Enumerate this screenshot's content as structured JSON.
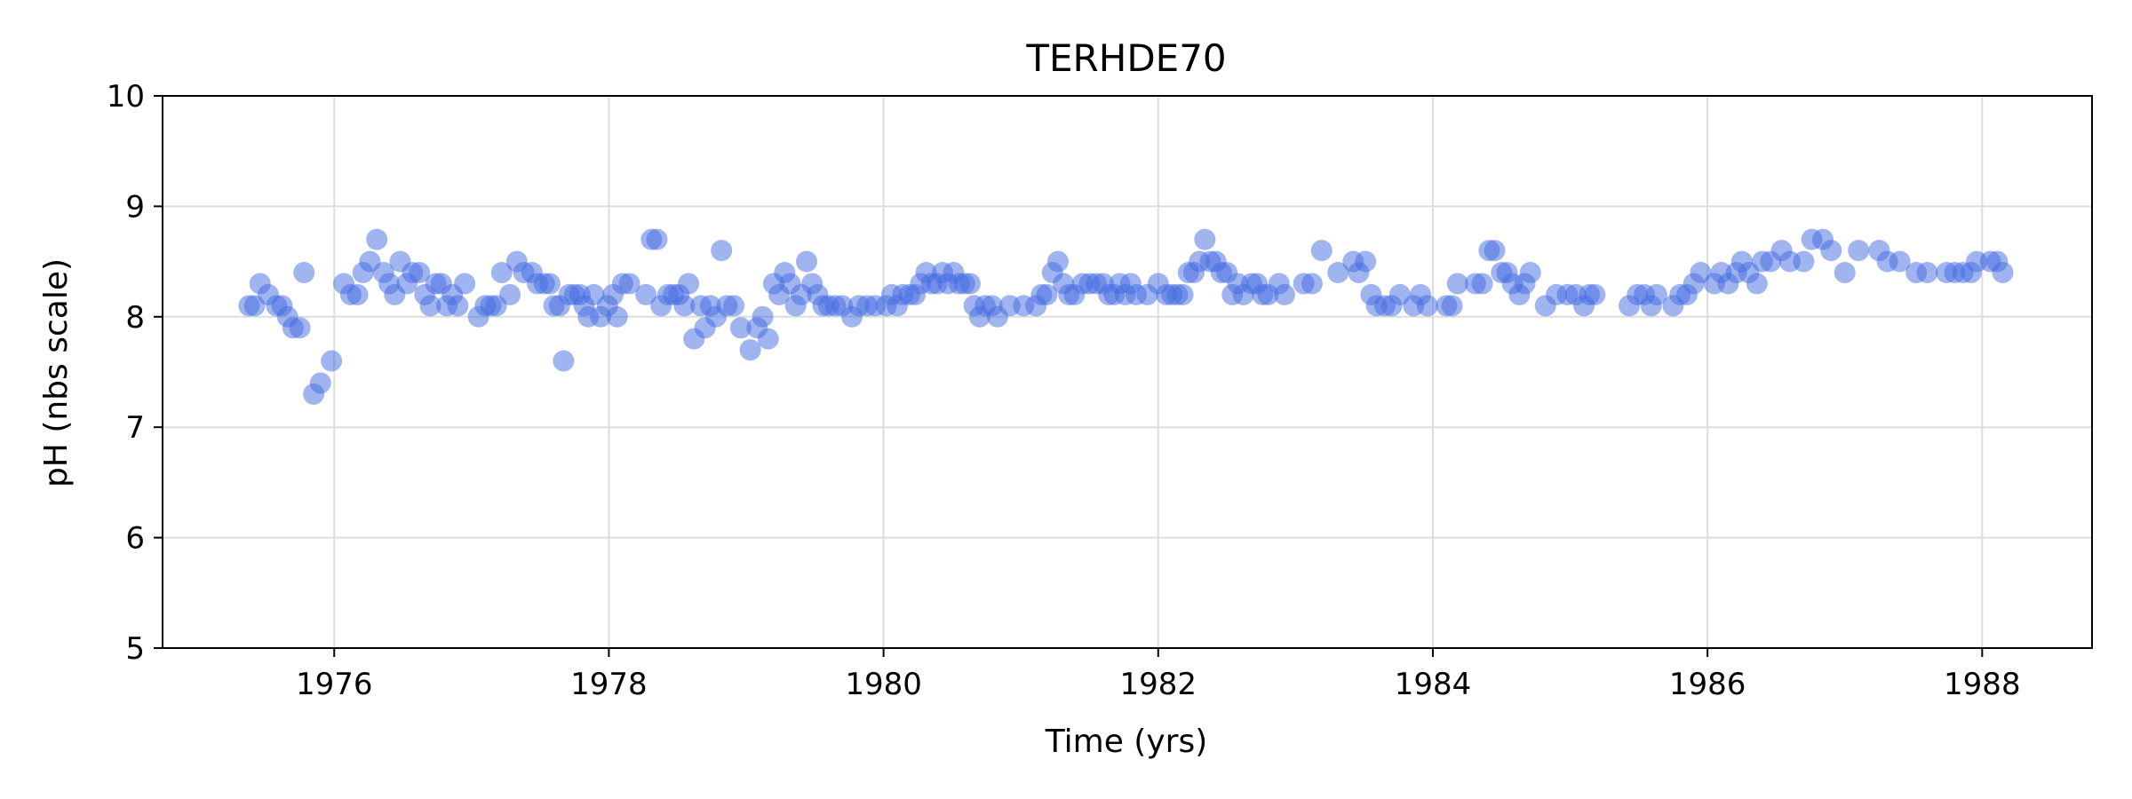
{
  "chart_data": {
    "type": "scatter",
    "title": "TERHDE70",
    "xlabel": "Time (yrs)",
    "ylabel": "pH (nbs scale)",
    "xlim": [
      1974.75,
      1988.8
    ],
    "ylim": [
      5,
      10
    ],
    "xticks": [
      1976,
      1978,
      1980,
      1982,
      1984,
      1986,
      1988
    ],
    "yticks": [
      5,
      6,
      7,
      8,
      9,
      10
    ],
    "grid": true,
    "marker_color": "#4169E1",
    "marker_alpha": 0.5,
    "points": [
      [
        1975.38,
        8.1
      ],
      [
        1975.42,
        8.1
      ],
      [
        1975.46,
        8.3
      ],
      [
        1975.52,
        8.2
      ],
      [
        1975.58,
        8.1
      ],
      [
        1975.62,
        8.1
      ],
      [
        1975.66,
        8.0
      ],
      [
        1975.7,
        7.9
      ],
      [
        1975.75,
        7.9
      ],
      [
        1975.78,
        8.4
      ],
      [
        1975.85,
        7.3
      ],
      [
        1975.9,
        7.4
      ],
      [
        1975.98,
        7.6
      ],
      [
        1976.07,
        8.3
      ],
      [
        1976.12,
        8.2
      ],
      [
        1976.17,
        8.2
      ],
      [
        1976.21,
        8.4
      ],
      [
        1976.26,
        8.5
      ],
      [
        1976.31,
        8.7
      ],
      [
        1976.36,
        8.4
      ],
      [
        1976.4,
        8.3
      ],
      [
        1976.44,
        8.2
      ],
      [
        1976.48,
        8.5
      ],
      [
        1976.53,
        8.3
      ],
      [
        1976.57,
        8.4
      ],
      [
        1976.62,
        8.4
      ],
      [
        1976.66,
        8.2
      ],
      [
        1976.7,
        8.1
      ],
      [
        1976.74,
        8.3
      ],
      [
        1976.78,
        8.3
      ],
      [
        1976.82,
        8.1
      ],
      [
        1976.86,
        8.2
      ],
      [
        1976.9,
        8.1
      ],
      [
        1976.95,
        8.3
      ],
      [
        1977.05,
        8.0
      ],
      [
        1977.1,
        8.1
      ],
      [
        1977.14,
        8.1
      ],
      [
        1977.18,
        8.1
      ],
      [
        1977.22,
        8.4
      ],
      [
        1977.28,
        8.2
      ],
      [
        1977.33,
        8.5
      ],
      [
        1977.38,
        8.4
      ],
      [
        1977.44,
        8.4
      ],
      [
        1977.48,
        8.3
      ],
      [
        1977.53,
        8.3
      ],
      [
        1977.57,
        8.3
      ],
      [
        1977.6,
        8.1
      ],
      [
        1977.64,
        8.1
      ],
      [
        1977.67,
        7.6
      ],
      [
        1977.71,
        8.2
      ],
      [
        1977.75,
        8.2
      ],
      [
        1977.79,
        8.2
      ],
      [
        1977.82,
        8.1
      ],
      [
        1977.85,
        8.0
      ],
      [
        1977.89,
        8.2
      ],
      [
        1977.94,
        8.0
      ],
      [
        1977.99,
        8.1
      ],
      [
        1978.03,
        8.2
      ],
      [
        1978.06,
        8.0
      ],
      [
        1978.1,
        8.3
      ],
      [
        1978.15,
        8.3
      ],
      [
        1978.27,
        8.2
      ],
      [
        1978.31,
        8.7
      ],
      [
        1978.35,
        8.7
      ],
      [
        1978.38,
        8.1
      ],
      [
        1978.43,
        8.2
      ],
      [
        1978.47,
        8.2
      ],
      [
        1978.51,
        8.2
      ],
      [
        1978.55,
        8.1
      ],
      [
        1978.58,
        8.3
      ],
      [
        1978.62,
        7.8
      ],
      [
        1978.67,
        8.1
      ],
      [
        1978.7,
        7.9
      ],
      [
        1978.74,
        8.1
      ],
      [
        1978.78,
        8.0
      ],
      [
        1978.82,
        8.6
      ],
      [
        1978.86,
        8.1
      ],
      [
        1978.91,
        8.1
      ],
      [
        1978.96,
        7.9
      ],
      [
        1979.03,
        7.7
      ],
      [
        1979.08,
        7.9
      ],
      [
        1979.12,
        8.0
      ],
      [
        1979.16,
        7.8
      ],
      [
        1979.2,
        8.3
      ],
      [
        1979.24,
        8.2
      ],
      [
        1979.28,
        8.4
      ],
      [
        1979.32,
        8.3
      ],
      [
        1979.36,
        8.1
      ],
      [
        1979.4,
        8.2
      ],
      [
        1979.44,
        8.5
      ],
      [
        1979.48,
        8.3
      ],
      [
        1979.52,
        8.2
      ],
      [
        1979.56,
        8.1
      ],
      [
        1979.6,
        8.1
      ],
      [
        1979.65,
        8.1
      ],
      [
        1979.7,
        8.1
      ],
      [
        1979.77,
        8.0
      ],
      [
        1979.82,
        8.1
      ],
      [
        1979.88,
        8.1
      ],
      [
        1979.94,
        8.1
      ],
      [
        1980.02,
        8.1
      ],
      [
        1980.06,
        8.2
      ],
      [
        1980.1,
        8.1
      ],
      [
        1980.14,
        8.2
      ],
      [
        1980.19,
        8.2
      ],
      [
        1980.23,
        8.2
      ],
      [
        1980.27,
        8.3
      ],
      [
        1980.31,
        8.4
      ],
      [
        1980.35,
        8.3
      ],
      [
        1980.39,
        8.3
      ],
      [
        1980.43,
        8.4
      ],
      [
        1980.47,
        8.3
      ],
      [
        1980.51,
        8.4
      ],
      [
        1980.55,
        8.3
      ],
      [
        1980.59,
        8.3
      ],
      [
        1980.63,
        8.3
      ],
      [
        1980.66,
        8.1
      ],
      [
        1980.7,
        8.0
      ],
      [
        1980.74,
        8.1
      ],
      [
        1980.79,
        8.1
      ],
      [
        1980.83,
        8.0
      ],
      [
        1980.92,
        8.1
      ],
      [
        1981.02,
        8.1
      ],
      [
        1981.11,
        8.1
      ],
      [
        1981.15,
        8.2
      ],
      [
        1981.19,
        8.2
      ],
      [
        1981.23,
        8.4
      ],
      [
        1981.27,
        8.5
      ],
      [
        1981.31,
        8.3
      ],
      [
        1981.35,
        8.2
      ],
      [
        1981.39,
        8.2
      ],
      [
        1981.45,
        8.3
      ],
      [
        1981.5,
        8.3
      ],
      [
        1981.55,
        8.3
      ],
      [
        1981.6,
        8.3
      ],
      [
        1981.64,
        8.2
      ],
      [
        1981.68,
        8.2
      ],
      [
        1981.72,
        8.3
      ],
      [
        1981.76,
        8.2
      ],
      [
        1981.8,
        8.3
      ],
      [
        1981.84,
        8.2
      ],
      [
        1981.92,
        8.2
      ],
      [
        1982.0,
        8.3
      ],
      [
        1982.06,
        8.2
      ],
      [
        1982.1,
        8.2
      ],
      [
        1982.14,
        8.2
      ],
      [
        1982.18,
        8.2
      ],
      [
        1982.22,
        8.4
      ],
      [
        1982.26,
        8.4
      ],
      [
        1982.3,
        8.5
      ],
      [
        1982.34,
        8.7
      ],
      [
        1982.38,
        8.5
      ],
      [
        1982.42,
        8.5
      ],
      [
        1982.46,
        8.4
      ],
      [
        1982.5,
        8.4
      ],
      [
        1982.54,
        8.2
      ],
      [
        1982.58,
        8.3
      ],
      [
        1982.62,
        8.2
      ],
      [
        1982.68,
        8.3
      ],
      [
        1982.72,
        8.3
      ],
      [
        1982.76,
        8.2
      ],
      [
        1982.8,
        8.2
      ],
      [
        1982.88,
        8.3
      ],
      [
        1982.92,
        8.2
      ],
      [
        1983.06,
        8.3
      ],
      [
        1983.12,
        8.3
      ],
      [
        1983.19,
        8.6
      ],
      [
        1983.31,
        8.4
      ],
      [
        1983.42,
        8.5
      ],
      [
        1983.46,
        8.4
      ],
      [
        1983.51,
        8.5
      ],
      [
        1983.55,
        8.2
      ],
      [
        1983.59,
        8.1
      ],
      [
        1983.65,
        8.1
      ],
      [
        1983.7,
        8.1
      ],
      [
        1983.76,
        8.2
      ],
      [
        1983.86,
        8.1
      ],
      [
        1983.91,
        8.2
      ],
      [
        1983.96,
        8.1
      ],
      [
        1984.1,
        8.1
      ],
      [
        1984.14,
        8.1
      ],
      [
        1984.18,
        8.3
      ],
      [
        1984.31,
        8.3
      ],
      [
        1984.36,
        8.3
      ],
      [
        1984.41,
        8.6
      ],
      [
        1984.45,
        8.6
      ],
      [
        1984.5,
        8.4
      ],
      [
        1984.54,
        8.4
      ],
      [
        1984.58,
        8.3
      ],
      [
        1984.63,
        8.2
      ],
      [
        1984.67,
        8.3
      ],
      [
        1984.71,
        8.4
      ],
      [
        1984.82,
        8.1
      ],
      [
        1984.9,
        8.2
      ],
      [
        1984.98,
        8.2
      ],
      [
        1985.04,
        8.2
      ],
      [
        1985.1,
        8.1
      ],
      [
        1985.14,
        8.2
      ],
      [
        1985.18,
        8.2
      ],
      [
        1985.43,
        8.1
      ],
      [
        1985.49,
        8.2
      ],
      [
        1985.54,
        8.2
      ],
      [
        1985.59,
        8.1
      ],
      [
        1985.63,
        8.2
      ],
      [
        1985.75,
        8.1
      ],
      [
        1985.8,
        8.2
      ],
      [
        1985.85,
        8.2
      ],
      [
        1985.9,
        8.3
      ],
      [
        1985.95,
        8.4
      ],
      [
        1986.05,
        8.3
      ],
      [
        1986.1,
        8.4
      ],
      [
        1986.15,
        8.3
      ],
      [
        1986.21,
        8.4
      ],
      [
        1986.25,
        8.5
      ],
      [
        1986.3,
        8.4
      ],
      [
        1986.36,
        8.3
      ],
      [
        1986.4,
        8.5
      ],
      [
        1986.46,
        8.5
      ],
      [
        1986.54,
        8.6
      ],
      [
        1986.6,
        8.5
      ],
      [
        1986.7,
        8.5
      ],
      [
        1986.76,
        8.7
      ],
      [
        1986.84,
        8.7
      ],
      [
        1986.9,
        8.6
      ],
      [
        1987.0,
        8.4
      ],
      [
        1987.1,
        8.6
      ],
      [
        1987.25,
        8.6
      ],
      [
        1987.31,
        8.5
      ],
      [
        1987.4,
        8.5
      ],
      [
        1987.52,
        8.4
      ],
      [
        1987.6,
        8.4
      ],
      [
        1987.74,
        8.4
      ],
      [
        1987.8,
        8.4
      ],
      [
        1987.86,
        8.4
      ],
      [
        1987.92,
        8.4
      ],
      [
        1987.96,
        8.5
      ],
      [
        1988.06,
        8.5
      ],
      [
        1988.11,
        8.5
      ],
      [
        1988.15,
        8.4
      ]
    ]
  }
}
